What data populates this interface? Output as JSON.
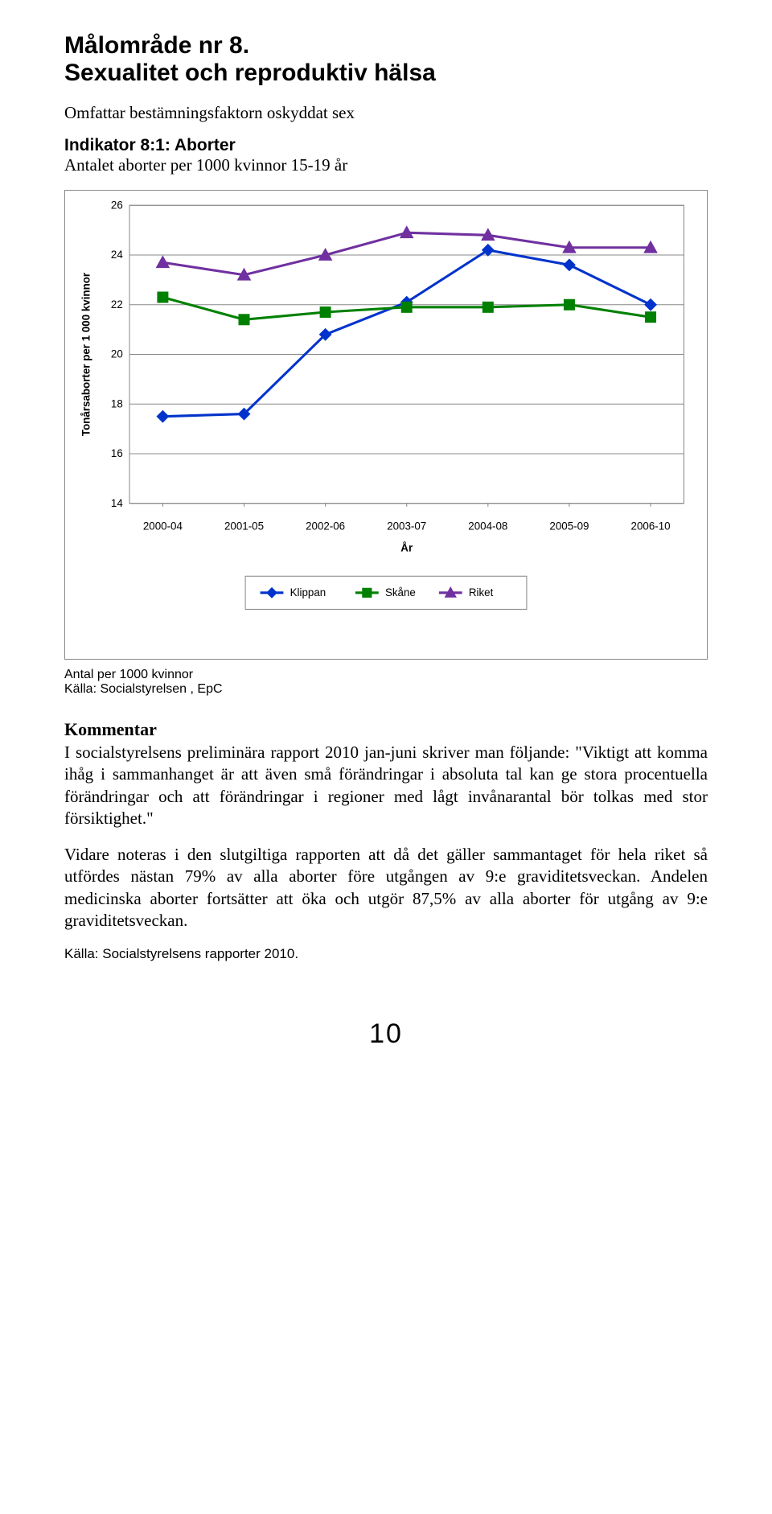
{
  "title": {
    "line1": "Målområde nr 8.",
    "line2": "Sexualitet och reproduktiv hälsa"
  },
  "subtitle": "Omfattar bestämningsfaktorn oskyddat sex",
  "indicator": {
    "label": "Indikator 8:1: Aborter",
    "desc": "Antalet aborter per 1000 kvinnor 15-19 år"
  },
  "chart": {
    "type": "line",
    "ylabel": "Tonårsaborter per 1 000 kvinnor",
    "xlabel": "År",
    "ylim": [
      14,
      26
    ],
    "ytick_step": 2,
    "yticks": [
      14,
      16,
      18,
      20,
      22,
      24,
      26
    ],
    "categories": [
      "2000-04",
      "2001-05",
      "2002-06",
      "2003-07",
      "2004-08",
      "2005-09",
      "2006-10"
    ],
    "series": [
      {
        "name": "Klippan",
        "color": "#0033cc",
        "marker": "diamond",
        "marker_color": "#0033cc",
        "line_width": 3,
        "values": [
          17.5,
          17.6,
          20.8,
          22.1,
          24.2,
          23.6,
          22.0
        ]
      },
      {
        "name": "Skåne",
        "color": "#008000",
        "marker": "square",
        "marker_color": "#008000",
        "line_width": 3,
        "values": [
          22.3,
          21.4,
          21.7,
          21.9,
          21.9,
          22.0,
          21.5
        ]
      },
      {
        "name": "Riket",
        "color": "#7030a0",
        "marker": "triangle",
        "marker_color": "#7030a0",
        "line_width": 3,
        "values": [
          23.7,
          23.2,
          24.0,
          24.9,
          24.8,
          24.3,
          24.3
        ]
      }
    ],
    "background_color": "#ffffff",
    "grid_color": "#888888",
    "axis_color": "#000000",
    "label_fontsize": 13,
    "tick_fontsize": 13,
    "legend_fontsize": 13,
    "legend_position": "bottom"
  },
  "source1": {
    "line1": "Antal per 1000 kvinnor",
    "line2": "Källa: Socialstyrelsen , EpC"
  },
  "kommentar": {
    "heading": "Kommentar",
    "p1": "I socialstyrelsens preliminära rapport 2010 jan-juni skriver man följande: \"Viktigt att komma ihåg i sammanhanget är att även små förändringar i absoluta tal kan ge stora procentuella förändringar och att förändringar i regioner med lågt invånarantal bör tolkas med stor försiktighet.\"",
    "p2": "Vidare noteras i den slutgiltiga rapporten att då det gäller sammantaget för hela riket så utfördes nästan 79% av alla aborter före utgången av 9:e graviditetsveckan. Andelen medicinska aborter fortsätter att öka och utgör 87,5% av alla aborter för utgång av 9:e graviditetsveckan."
  },
  "source2": "Källa: Socialstyrelsens rapporter 2010.",
  "page_number": "10"
}
